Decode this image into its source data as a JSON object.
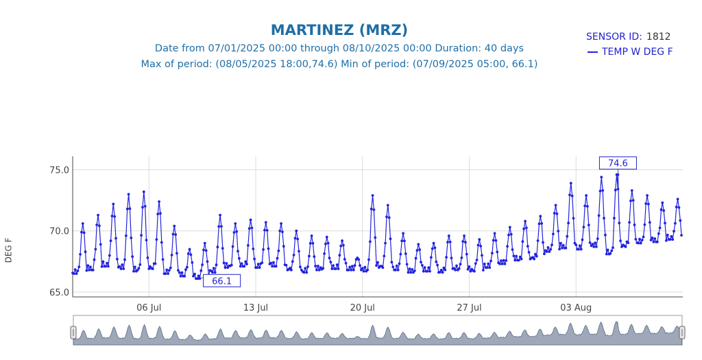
{
  "header": {
    "title": "MARTINEZ (MRZ)",
    "date_from_label": "Date from",
    "date_from": "07/01/2025 00:00",
    "through_label": "through",
    "date_to": "08/10/2025 00:00",
    "duration_label": "Duration:",
    "duration": "40 days",
    "max_label": "Max of period:",
    "max_text": "(08/05/2025 18:00,74.6)",
    "min_label": "Min of period:",
    "min_text": "(07/09/2025 05:00, 66.1)"
  },
  "legend": {
    "sensor_label": "SENSOR ID:",
    "sensor_id": "1812",
    "series_label": "TEMP W DEG F"
  },
  "axis": {
    "ylabel": "DEG F"
  },
  "colors": {
    "title": "#1f6ea6",
    "series": "#2222dd",
    "grid": "#dcdcdc",
    "rangeslider_fill": "#8d99ad"
  },
  "chart_data": {
    "type": "line",
    "title": "MARTINEZ (MRZ)",
    "xlabel": "",
    "ylabel": "DEG F",
    "x_range": [
      "2025-07-01 00:00",
      "2025-08-10 00:00"
    ],
    "ylim": [
      64.6,
      76.1
    ],
    "y_ticks": [
      65.0,
      70.0,
      75.0
    ],
    "y_tick_labels": [
      "65.0",
      "70.0",
      "75.0"
    ],
    "x_ticks": [
      "2025-07-06",
      "2025-07-13",
      "2025-07-20",
      "2025-07-27",
      "2025-08-03"
    ],
    "x_tick_labels": [
      "06 Jul",
      "13 Jul",
      "20 Jul",
      "27 Jul",
      "03 Aug"
    ],
    "grid": true,
    "legend_position": "top-right",
    "series": [
      {
        "name": "TEMP W DEG F",
        "daily_values": [
          {
            "date": "2025-07-01",
            "min": 66.5,
            "max": 70.6
          },
          {
            "date": "2025-07-02",
            "min": 66.8,
            "max": 71.3
          },
          {
            "date": "2025-07-03",
            "min": 67.1,
            "max": 72.2
          },
          {
            "date": "2025-07-04",
            "min": 66.9,
            "max": 73.0
          },
          {
            "date": "2025-07-05",
            "min": 66.7,
            "max": 73.2
          },
          {
            "date": "2025-07-06",
            "min": 66.9,
            "max": 72.4
          },
          {
            "date": "2025-07-07",
            "min": 66.5,
            "max": 70.4
          },
          {
            "date": "2025-07-08",
            "min": 66.3,
            "max": 68.5
          },
          {
            "date": "2025-07-09",
            "min": 66.1,
            "max": 69.0
          },
          {
            "date": "2025-07-10",
            "min": 66.6,
            "max": 71.3
          },
          {
            "date": "2025-07-11",
            "min": 67.0,
            "max": 70.6
          },
          {
            "date": "2025-07-12",
            "min": 67.1,
            "max": 70.9
          },
          {
            "date": "2025-07-13",
            "min": 67.0,
            "max": 70.7
          },
          {
            "date": "2025-07-14",
            "min": 67.1,
            "max": 70.6
          },
          {
            "date": "2025-07-15",
            "min": 66.8,
            "max": 70.0
          },
          {
            "date": "2025-07-16",
            "min": 66.6,
            "max": 69.6
          },
          {
            "date": "2025-07-17",
            "min": 66.8,
            "max": 69.5
          },
          {
            "date": "2025-07-18",
            "min": 66.9,
            "max": 69.2
          },
          {
            "date": "2025-07-19",
            "min": 66.8,
            "max": 67.8
          },
          {
            "date": "2025-07-20",
            "min": 66.7,
            "max": 72.9
          },
          {
            "date": "2025-07-21",
            "min": 67.0,
            "max": 72.1
          },
          {
            "date": "2025-07-22",
            "min": 66.8,
            "max": 69.8
          },
          {
            "date": "2025-07-23",
            "min": 66.6,
            "max": 68.9
          },
          {
            "date": "2025-07-24",
            "min": 66.7,
            "max": 69.0
          },
          {
            "date": "2025-07-25",
            "min": 66.6,
            "max": 69.6
          },
          {
            "date": "2025-07-26",
            "min": 66.8,
            "max": 69.6
          },
          {
            "date": "2025-07-27",
            "min": 66.7,
            "max": 69.3
          },
          {
            "date": "2025-07-28",
            "min": 67.0,
            "max": 69.8
          },
          {
            "date": "2025-07-29",
            "min": 67.3,
            "max": 70.3
          },
          {
            "date": "2025-07-30",
            "min": 67.6,
            "max": 70.8
          },
          {
            "date": "2025-07-31",
            "min": 67.7,
            "max": 71.2
          },
          {
            "date": "2025-08-01",
            "min": 68.3,
            "max": 72.1
          },
          {
            "date": "2025-08-02",
            "min": 68.6,
            "max": 73.9
          },
          {
            "date": "2025-08-03",
            "min": 68.5,
            "max": 72.9
          },
          {
            "date": "2025-08-04",
            "min": 68.7,
            "max": 74.4
          },
          {
            "date": "2025-08-05",
            "min": 68.1,
            "max": 74.6
          },
          {
            "date": "2025-08-06",
            "min": 68.7,
            "max": 73.3
          },
          {
            "date": "2025-08-07",
            "min": 69.0,
            "max": 72.9
          },
          {
            "date": "2025-08-08",
            "min": 69.1,
            "max": 72.3
          },
          {
            "date": "2025-08-09",
            "min": 69.3,
            "max": 72.6
          }
        ]
      }
    ],
    "annotations": [
      {
        "x": "2025-08-05 18:00",
        "y": 74.6,
        "text": "74.6",
        "label": "max"
      },
      {
        "x": "2025-07-09 05:00",
        "y": 66.1,
        "text": "66.1",
        "label": "min"
      }
    ]
  }
}
